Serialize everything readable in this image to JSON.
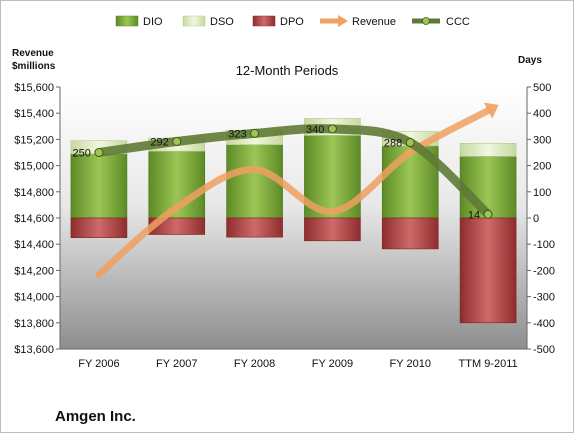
{
  "chart_data": {
    "type": "bar",
    "title": "12-Month Periods",
    "company": "Amgen Inc.",
    "y_left_label_line1": "Revenue",
    "y_left_label_line2": "$millions",
    "y_right_label": "Days",
    "categories": [
      "FY 2006",
      "FY 2007",
      "FY 2008",
      "FY 2009",
      "FY 2010",
      "TTM 9-2011"
    ],
    "y_left_lim": [
      13600,
      15600
    ],
    "y_left_ticks": [
      "$13,600",
      "$13,800",
      "$14,000",
      "$14,200",
      "$14,400",
      "$14,600",
      "$14,800",
      "$15,000",
      "$15,200",
      "$15,400",
      "$15,600"
    ],
    "y_right_lim": [
      -500,
      500
    ],
    "y_right_ticks": [
      "-500",
      "-400",
      "-300",
      "-200",
      "-100",
      "0",
      "100",
      "200",
      "300",
      "400",
      "500"
    ],
    "series": [
      {
        "name": "DIO",
        "color": "#77a03a",
        "values": [
          245,
          255,
          280,
          315,
          275,
          235
        ]
      },
      {
        "name": "DSO",
        "color": "#d7e6b8",
        "values": [
          50,
          50,
          55,
          65,
          55,
          50
        ]
      },
      {
        "name": "DPO",
        "color": "#b24545",
        "values": [
          -75,
          -63,
          -73,
          -87,
          -118,
          -400
        ]
      },
      {
        "name": "Revenue",
        "color": "#f0a060",
        "values": [
          14170,
          14680,
          14970,
          14650,
          15100,
          15420
        ]
      },
      {
        "name": "CCC",
        "color": "#5f7a35",
        "values": [
          250,
          292,
          323,
          340,
          288,
          14
        ]
      }
    ],
    "ccc_labels": [
      "250",
      "292",
      "323",
      "340",
      "288",
      "14"
    ],
    "grid": false,
    "legend_position": "top"
  }
}
